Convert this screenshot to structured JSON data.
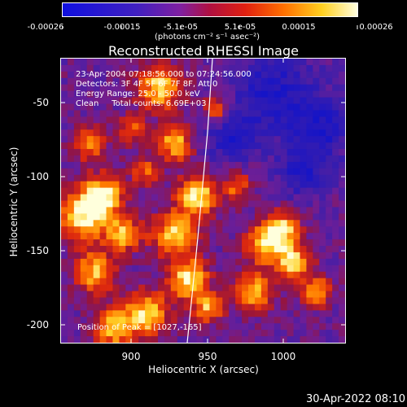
{
  "colorbar": {
    "ticks": [
      "-0.00026",
      "-0.00015",
      "-5.1e-05",
      "5.1e-05",
      "0.00015",
      "0.00026"
    ],
    "units": "(photons cm⁻² s⁻¹ asec⁻²)"
  },
  "title": "Reconstructed RHESSI Image",
  "info": {
    "time_range": "23-Apr-2004 07:18:56.000 to 07:24:56.000",
    "detectors": "Detectors: 3F 4F 5F 6F 7F 8F, Att 0",
    "energy": "Energy Range: 25.0 - 50.0 keV",
    "method_counts": "Clean     Total counts: 6.69E+03"
  },
  "peak": "Position of Peak = [1027,-165]",
  "axes": {
    "xlabel": "Heliocentric X (arcsec)",
    "ylabel": "Heliocentric Y (arcsec)",
    "xticks": [
      "900",
      "950",
      "1000"
    ],
    "yticks": [
      "-50",
      "-100",
      "-150",
      "-200"
    ]
  },
  "timestamp": "30-Apr-2022 08:10",
  "colors": {
    "background": "#000000",
    "foreground": "#ffffff"
  }
}
